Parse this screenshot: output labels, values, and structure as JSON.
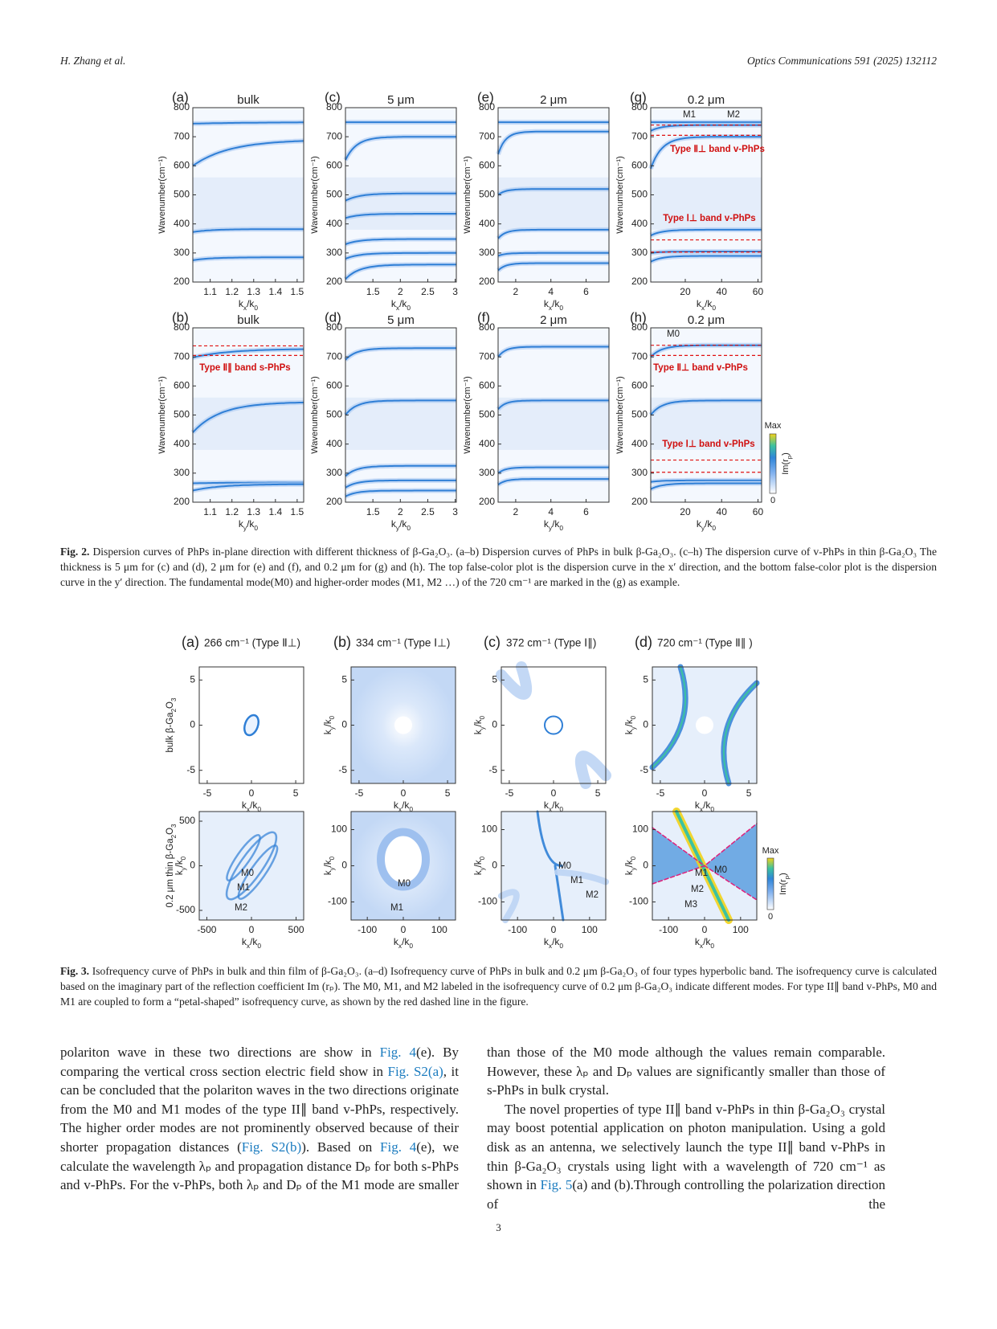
{
  "header": {
    "left": "H. Zhang et al.",
    "right": "Optics Communications 591 (2025) 132112"
  },
  "fig2": {
    "panels": [
      {
        "label": "(a)",
        "title": "bulk",
        "ylabel": "Wavenumber(cm⁻¹)",
        "xlabel": [
          "k",
          "x",
          "/k",
          "0"
        ],
        "xlim": [
          1.02,
          1.53
        ],
        "ylim": [
          200,
          800
        ],
        "xticks": [
          1.1,
          1.2,
          1.3,
          1.4,
          1.5
        ],
        "yticks": [
          200,
          300,
          400,
          500,
          600,
          700,
          800
        ],
        "annotations": []
      },
      {
        "label": "(c)",
        "title": "5 μm",
        "ylabel": "Wavenumber(cm⁻¹)",
        "xlabel": [
          "k",
          "x",
          "/k",
          "0"
        ],
        "xlim": [
          1.0,
          3.02
        ],
        "ylim": [
          200,
          800
        ],
        "xticks": [
          1.5,
          2,
          2.5,
          3
        ],
        "yticks": [
          200,
          300,
          400,
          500,
          600,
          700,
          800
        ],
        "annotations": []
      },
      {
        "label": "(e)",
        "title": "2 μm",
        "ylabel": "Wavenumber(cm⁻¹)",
        "xlabel": [
          "k",
          "x",
          "/k",
          "0"
        ],
        "xlim": [
          1,
          7.3
        ],
        "ylim": [
          200,
          800
        ],
        "xticks": [
          2,
          4,
          6
        ],
        "yticks": [
          200,
          300,
          400,
          500,
          600,
          700,
          800
        ],
        "annotations": []
      },
      {
        "label": "(g)",
        "title": "0.2 μm",
        "ylabel": "Wavenumber(cm⁻¹)",
        "xlabel": [
          "k",
          "x",
          "/k",
          "0"
        ],
        "xlim": [
          1,
          62
        ],
        "ylim": [
          200,
          800
        ],
        "xticks": [
          20,
          40,
          60
        ],
        "yticks": [
          200,
          300,
          400,
          500,
          600,
          700,
          800
        ],
        "annotations": [
          "M1",
          "M2",
          "Type Ⅱ⊥ band v-PhPs",
          "Type Ⅰ⊥ band v-PhPs"
        ]
      },
      {
        "label": "(b)",
        "title": "bulk",
        "ylabel": "Wavenumber(cm⁻¹)",
        "xlabel": [
          "k",
          "y",
          "/k",
          "0"
        ],
        "xlim": [
          1.02,
          1.53
        ],
        "ylim": [
          200,
          800
        ],
        "xticks": [
          1.1,
          1.2,
          1.3,
          1.4,
          1.5
        ],
        "yticks": [
          200,
          300,
          400,
          500,
          600,
          700,
          800
        ],
        "annotations": [
          "Type Ⅱ∥ band s-PhPs"
        ]
      },
      {
        "label": "(d)",
        "title": "5 μm",
        "ylabel": "Wavenumber(cm⁻¹)",
        "xlabel": [
          "k",
          "y",
          "/k",
          "0"
        ],
        "xlim": [
          1.0,
          3.02
        ],
        "ylim": [
          200,
          800
        ],
        "xticks": [
          1.5,
          2,
          2.5,
          3
        ],
        "yticks": [
          200,
          300,
          400,
          500,
          600,
          700,
          800
        ],
        "annotations": []
      },
      {
        "label": "(f)",
        "title": "2 μm",
        "ylabel": "Wavenumber(cm⁻¹)",
        "xlabel": [
          "k",
          "y",
          "/k",
          "0"
        ],
        "xlim": [
          1,
          7.3
        ],
        "ylim": [
          200,
          800
        ],
        "xticks": [
          2,
          4,
          6
        ],
        "yticks": [
          200,
          300,
          400,
          500,
          600,
          700,
          800
        ],
        "annotations": []
      },
      {
        "label": "(h)",
        "title": "0.2 μm",
        "ylabel": "Wavenumber(cm⁻¹)",
        "xlabel": [
          "k",
          "y",
          "/k",
          "0"
        ],
        "xlim": [
          1,
          62
        ],
        "ylim": [
          200,
          800
        ],
        "xticks": [
          20,
          40,
          60
        ],
        "yticks": [
          200,
          300,
          400,
          500,
          600,
          700,
          800
        ],
        "annotations": [
          "M0",
          "Type Ⅱ⊥ band v-PhPs",
          "Type Ⅰ⊥ band v-PhPs"
        ]
      }
    ],
    "colorbar": {
      "max": "Max",
      "label": [
        "Im(r",
        "p",
        ")"
      ],
      "min": "0"
    },
    "caption": {
      "label": "Fig. 2.",
      "text": "Dispersion curves of PhPs in-plane direction with different thickness of β-Ga₂O₃. (a–b) Dispersion curves of PhPs in bulk β-Ga₂O₃. (c–h) The dispersion curve of v-PhPs in thin β-Ga₂O₃ The thickness is 5 μm for (c) and (d), 2 μm for (e) and (f), and 0.2 μm for (g) and (h). The top false-color plot is the dispersion curve in the x′ direction, and the bottom false-color plot is the dispersion curve in the y′ direction. The fundamental mode(M0) and higher-order modes (M1, M2 …) of the 720 cm⁻¹ are marked in the (g) as example."
    }
  },
  "fig3": {
    "panels": [
      {
        "label": "(a)",
        "title": "266 cm⁻¹ (Type Ⅱ⊥)",
        "ylabel": [
          "bulk β-Ga",
          "2",
          "O",
          "3"
        ],
        "xlabel": [
          "k",
          "x",
          "/k",
          "0"
        ],
        "xlim": [
          -5.9,
          5.9
        ],
        "ylim": [
          -6.45,
          6.45
        ],
        "xticks": [
          -5,
          0,
          5
        ],
        "yticks": [
          -5,
          0,
          5
        ],
        "annotations": []
      },
      {
        "label": "(b)",
        "title": "334 cm⁻¹ (Type Ⅰ⊥)",
        "ylabel": [
          "k",
          "y",
          "/k",
          "0"
        ],
        "xlabel": [
          "k",
          "x",
          "/k",
          "0"
        ],
        "xlim": [
          -5.9,
          5.9
        ],
        "ylim": [
          -6.45,
          6.45
        ],
        "xticks": [
          -5,
          0,
          5
        ],
        "yticks": [
          -5,
          0,
          5
        ],
        "annotations": []
      },
      {
        "label": "(c)",
        "title": "372 cm⁻¹ (Type Ⅰ∥)",
        "ylabel": [
          "k",
          "y",
          "/k",
          "0"
        ],
        "xlabel": [
          "k",
          "x",
          "/k",
          "0"
        ],
        "xlim": [
          -5.9,
          5.9
        ],
        "ylim": [
          -6.45,
          6.45
        ],
        "xticks": [
          -5,
          0,
          5
        ],
        "yticks": [
          -5,
          0,
          5
        ],
        "annotations": []
      },
      {
        "label": "(d)",
        "title": "720 cm⁻¹ (Type Ⅱ∥ )",
        "ylabel": [
          "k",
          "y",
          "/k",
          "0"
        ],
        "xlabel": [
          "k",
          "x",
          "/k",
          "0"
        ],
        "xlim": [
          -5.9,
          5.9
        ],
        "ylim": [
          -6.45,
          6.45
        ],
        "xticks": [
          -5,
          0,
          5
        ],
        "yticks": [
          -5,
          0,
          5
        ],
        "annotations": []
      },
      {
        "ylabel": [
          "0.2 μm thin β-Ga",
          "2",
          "O",
          "3"
        ],
        "ylabel2": [
          "k",
          "y",
          "/k",
          "0"
        ],
        "xlabel": [
          "k",
          "x",
          "/k",
          "0"
        ],
        "xlim": [
          -585,
          585
        ],
        "ylim": [
          -608,
          608
        ],
        "xticks": [
          -500,
          0,
          500
        ],
        "yticks": [
          -500,
          0,
          500
        ],
        "annotations": [
          "M0",
          "M1",
          "M2"
        ]
      },
      {
        "ylabel": [
          "k",
          "y",
          "/k",
          "0"
        ],
        "xlabel": [
          "k",
          "x",
          "/k",
          "0"
        ],
        "xlim": [
          -145,
          145
        ],
        "ylim": [
          -150,
          150
        ],
        "xticks": [
          -100,
          0,
          100
        ],
        "yticks": [
          -100,
          0,
          100
        ],
        "annotations": [
          "M0",
          "M1"
        ]
      },
      {
        "ylabel": [
          "k",
          "y",
          "/k",
          "0"
        ],
        "xlabel": [
          "k",
          "x",
          "/k",
          "0"
        ],
        "xlim": [
          -145,
          145
        ],
        "ylim": [
          -150,
          150
        ],
        "xticks": [
          -100,
          0,
          100
        ],
        "yticks": [
          -100,
          0,
          100
        ],
        "annotations": [
          "M0",
          "M1",
          "M2"
        ]
      },
      {
        "ylabel": [
          "k",
          "y",
          "/k",
          "0"
        ],
        "xlabel": [
          "k",
          "x",
          "/k",
          "0"
        ],
        "xlim": [
          -145,
          145
        ],
        "ylim": [
          -150,
          150
        ],
        "xticks": [
          -100,
          0,
          100
        ],
        "yticks": [
          -100,
          0,
          100
        ],
        "annotations": [
          "M1",
          "M0",
          "M2",
          "M3"
        ]
      }
    ],
    "colorbar": {
      "max": "Max",
      "label": [
        "Im(r",
        "p",
        ")"
      ],
      "min": "0"
    },
    "caption": {
      "label": "Fig. 3.",
      "text": "Isofrequency curve of PhPs in bulk and thin film of β-Ga₂O₃. (a–d) Isofrequency curve of PhPs in bulk and 0.2 μm β-Ga₂O₃ of four types hyperbolic band. The isofrequency curve is calculated based on the imaginary part of the reflection coefficient Im (rₚ). The M0, M1, and M2 labeled in the isofrequency curve of 0.2 μm β-Ga₂O₃ indicate different modes. For type II∥ band v-PhPs, M0 and M1 are coupled to form a “petal-shaped” isofrequency curve, as shown by the red dashed line in the figure."
    }
  },
  "body": {
    "left": [
      "polariton wave in these two directions are show in ",
      "Fig. 4",
      "(e). By comparing the vertical cross section electric field show in ",
      "Fig. S2(a)",
      ", it can be concluded that the polariton waves in the two directions originate from the M0 and M1 modes of the type II∥ band v-PhPs, respectively. The higher order modes are not prominently observed because of their shorter propagation distances (",
      "Fig. S2(b)",
      "). Based on ",
      "Fig. 4",
      "(e), we calculate the wavelength λₚ and propagation distance Dₚ for both s-PhPs and v-PhPs. For the v-PhPs, both λₚ and Dₚ of the M1 mode are smaller"
    ],
    "right1": [
      "than those of the M0 mode although the values remain comparable. However, these λₚ and Dₚ values are significantly smaller than those of s-PhPs in bulk crystal."
    ],
    "right2": [
      "The novel properties of type II∥ band v-PhPs in thin β-Ga₂O₃ crystal may boost potential application on photon manipulation. Using a gold disk as an antenna, we selectively launch the type II∥ band v-PhPs in thin β-Ga₂O₃ crystals using light with a wavelength of 720 cm⁻¹ as shown in ",
      "Fig. 5",
      "(a) and (b).Through controlling the polarization direction of the"
    ]
  },
  "page_number": "3"
}
